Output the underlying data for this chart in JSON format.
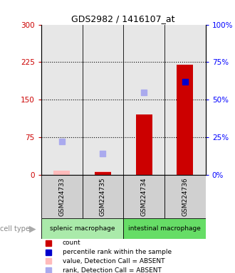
{
  "title": "GDS2982 / 1416107_at",
  "samples": [
    "GSM224733",
    "GSM224735",
    "GSM224734",
    "GSM224736"
  ],
  "cell_types": [
    {
      "label": "splenic macrophage",
      "samples": [
        0,
        1
      ],
      "color": "#aaeaaa"
    },
    {
      "label": "intestinal macrophage",
      "samples": [
        2,
        3
      ],
      "color": "#66dd66"
    }
  ],
  "bar_values": [
    0,
    5,
    120,
    220
  ],
  "bar_color": "#cc0000",
  "absent_bar_values": [
    8,
    7,
    0,
    2
  ],
  "absent_bar_color": "#ffbbbb",
  "rank_values": [
    null,
    null,
    null,
    62
  ],
  "rank_color": "#0000cc",
  "rank_absent_values": [
    22,
    14,
    55,
    null
  ],
  "rank_absent_color": "#aaaaee",
  "ylim_left": [
    0,
    300
  ],
  "ylim_right": [
    0,
    100
  ],
  "yticks_left": [
    0,
    75,
    150,
    225,
    300
  ],
  "ytick_labels_left": [
    "0",
    "75",
    "150",
    "225",
    "300"
  ],
  "yticks_right": [
    0,
    25,
    50,
    75,
    100
  ],
  "ytick_labels_right": [
    "0%",
    "25%",
    "50%",
    "75%",
    "100%"
  ],
  "dotted_lines": [
    75,
    150,
    225
  ],
  "legend_items": [
    {
      "color": "#cc0000",
      "label": "count"
    },
    {
      "color": "#0000cc",
      "label": "percentile rank within the sample"
    },
    {
      "color": "#ffbbbb",
      "label": "value, Detection Call = ABSENT"
    },
    {
      "color": "#aaaaee",
      "label": "rank, Detection Call = ABSENT"
    }
  ],
  "cell_type_label": "cell type",
  "bar_width": 0.4,
  "sample_gray": "#d0d0d0"
}
